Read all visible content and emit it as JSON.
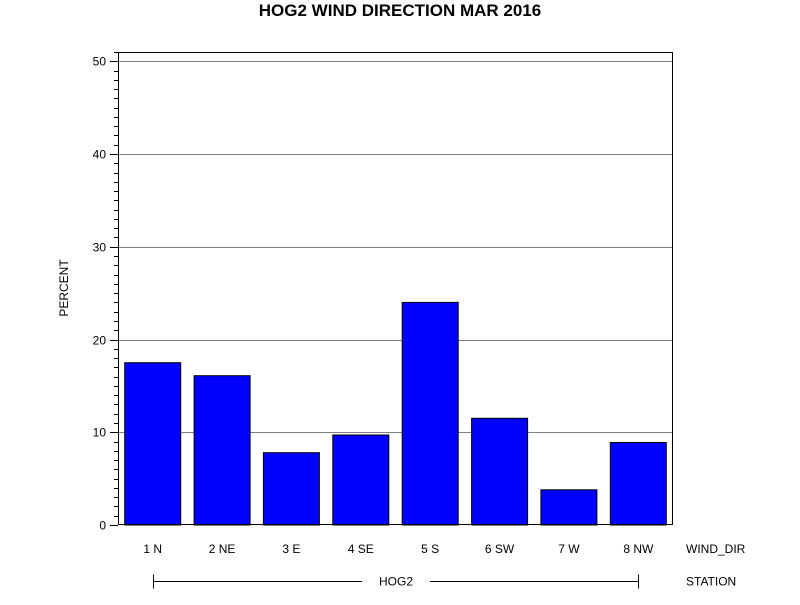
{
  "chart_data": {
    "type": "bar",
    "title": "HOG2 WIND DIRECTION MAR 2016",
    "ylabel": "PERCENT",
    "xlabel": "WIND_DIR",
    "group_axis_label": "STATION",
    "group_label": "HOG2",
    "categories": [
      "1 N",
      "2 NE",
      "3 E",
      "4 SE",
      "5 S",
      "6 SW",
      "7 W",
      "8 NW"
    ],
    "values": [
      17.5,
      16.1,
      7.8,
      9.7,
      24.0,
      11.5,
      3.8,
      8.9
    ],
    "ylim": [
      0,
      51
    ],
    "yticks": [
      0,
      10,
      20,
      30,
      40,
      50
    ],
    "grid": true,
    "bar_color": "#0000ff",
    "bar_outline_color": "#000000",
    "grid_color": "#808080"
  }
}
